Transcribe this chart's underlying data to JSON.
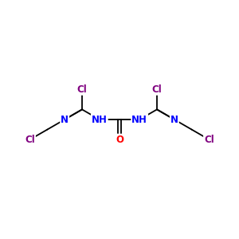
{
  "bg_color": "#ffffff",
  "bond_color": "#000000",
  "N_color": "#0000ff",
  "O_color": "#ff0000",
  "Cl_color": "#800080",
  "line_width": 1.3,
  "font_size": 8.5,
  "figsize": [
    3.0,
    3.0
  ],
  "dpi": 100,
  "xlim": [
    -3.8,
    3.8
  ],
  "ylim": [
    -1.8,
    1.8
  ]
}
